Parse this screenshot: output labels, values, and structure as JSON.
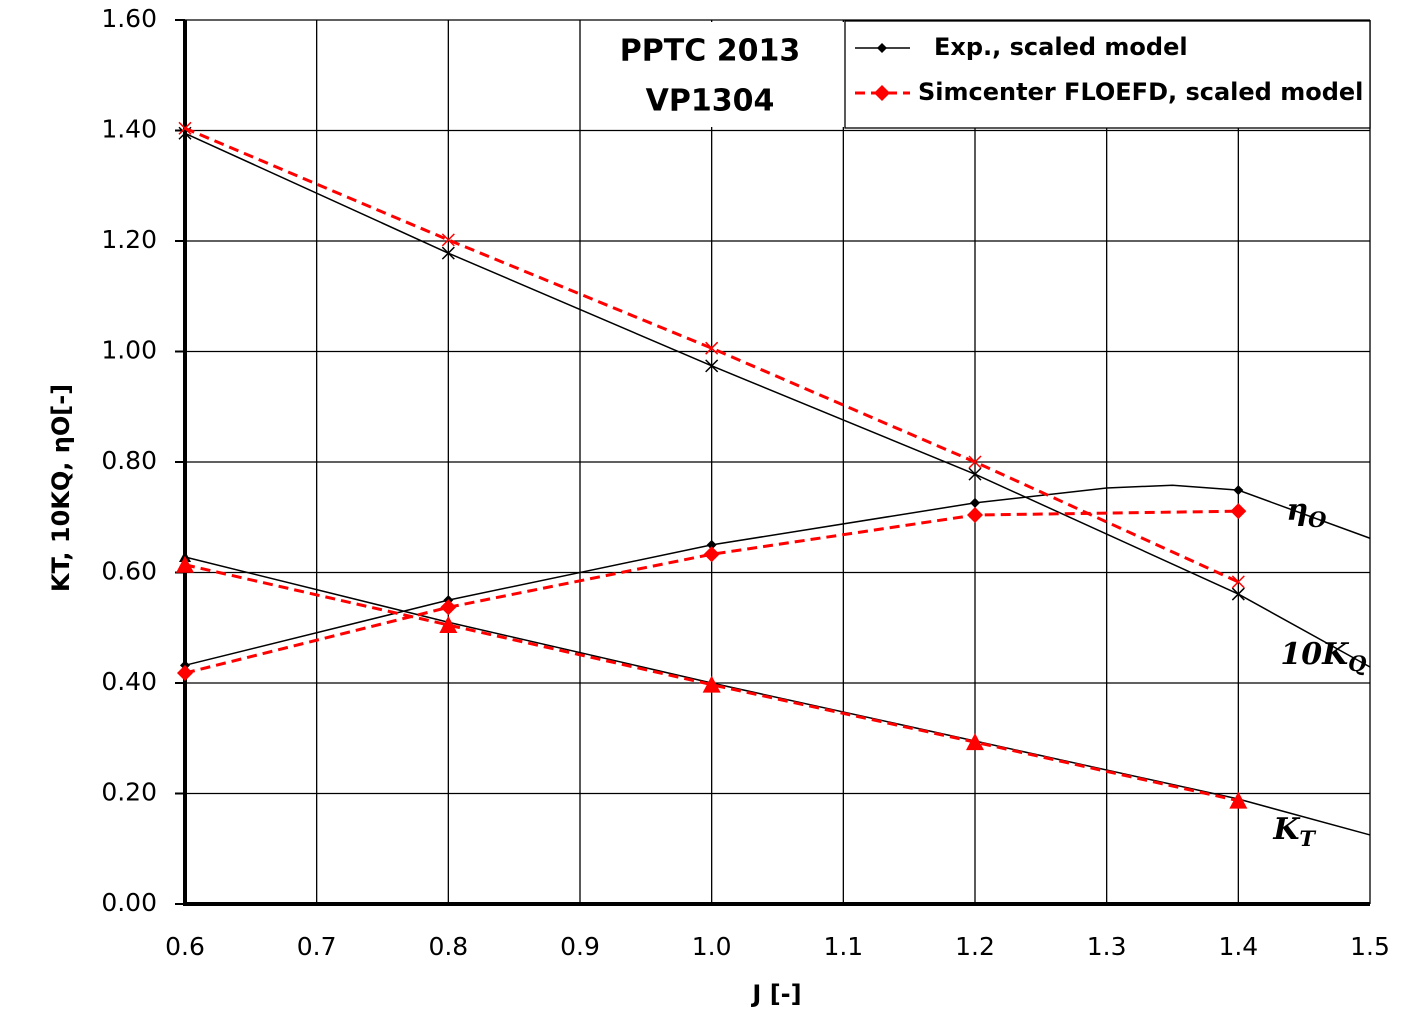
{
  "chart_data": {
    "type": "line",
    "title": [
      "PPTC 2013",
      "VP1304"
    ],
    "x_label": "J [-]",
    "y_label": "KT, 10KQ, ηO[-]",
    "x": [
      0.6,
      0.8,
      1.0,
      1.2,
      1.4
    ],
    "xlim": [
      0.6,
      1.5
    ],
    "xticks": [
      0.6,
      0.7,
      0.8,
      0.9,
      {
        "value": 1,
        "label": "1.0"
      },
      1.1,
      1.2,
      1.3,
      1.4,
      1.5
    ],
    "ylim": [
      0,
      1.6
    ],
    "yticks": [
      {
        "value": 0,
        "label": "0.00"
      },
      {
        "value": 0.2,
        "label": "0.20"
      },
      {
        "value": 0.4,
        "label": "0.40"
      },
      {
        "value": 0.6,
        "label": "0.60"
      },
      {
        "value": 0.8,
        "label": "0.80"
      },
      {
        "value": 1,
        "label": "1.00"
      },
      {
        "value": 1.2,
        "label": "1.20"
      },
      {
        "value": 1.4,
        "label": "1.40"
      },
      {
        "value": 1.6,
        "label": "1.60"
      }
    ],
    "grid": true,
    "legend": "top-right",
    "series": [
      {
        "name": "Exp., scaled model",
        "color": "#000000",
        "dashed": false,
        "curves": [
          {
            "label": "K",
            "label_sub": "T",
            "marker": "triangle",
            "values": [
              0.628,
              0.51,
              0.4,
              0.295,
              0.19
            ],
            "fit_x": [
              0.6,
              0.8,
              1.0,
              1.2,
              1.4,
              1.5
            ],
            "fit_values": [
              0.628,
              0.51,
              0.4,
              0.295,
              0.19,
              0.125
            ]
          },
          {
            "label": "10K",
            "label_sub": "Q",
            "marker": "x",
            "values": [
              1.395,
              1.178,
              0.974,
              0.778,
              0.561
            ],
            "fit_x": [
              0.6,
              0.8,
              1.0,
              1.2,
              1.4,
              1.5
            ],
            "fit_values": [
              1.395,
              1.178,
              0.974,
              0.778,
              0.561,
              0.429
            ]
          },
          {
            "label": "η",
            "label_sub": "O",
            "marker": "diamond",
            "values": [
              0.432,
              0.55,
              0.65,
              0.726,
              0.749
            ],
            "fit_x": [
              0.6,
              0.8,
              1.0,
              1.2,
              1.3,
              1.35,
              1.4,
              1.5
            ],
            "fit_values": [
              0.432,
              0.55,
              0.65,
              0.726,
              0.753,
              0.758,
              0.749,
              0.662
            ]
          }
        ]
      },
      {
        "name": "Simcenter FLOEFD, scaled model",
        "color": "#ff0000",
        "dashed": true,
        "curves": [
          {
            "marker": "triangle",
            "values": [
              0.614,
              0.505,
              0.397,
              0.293,
              0.187
            ]
          },
          {
            "marker": "x",
            "values": [
              1.404,
              1.202,
              1.006,
              0.8,
              0.583
            ]
          },
          {
            "marker": "diamond",
            "values": [
              0.418,
              0.537,
              0.633,
              0.704,
              0.711
            ]
          }
        ]
      }
    ]
  }
}
